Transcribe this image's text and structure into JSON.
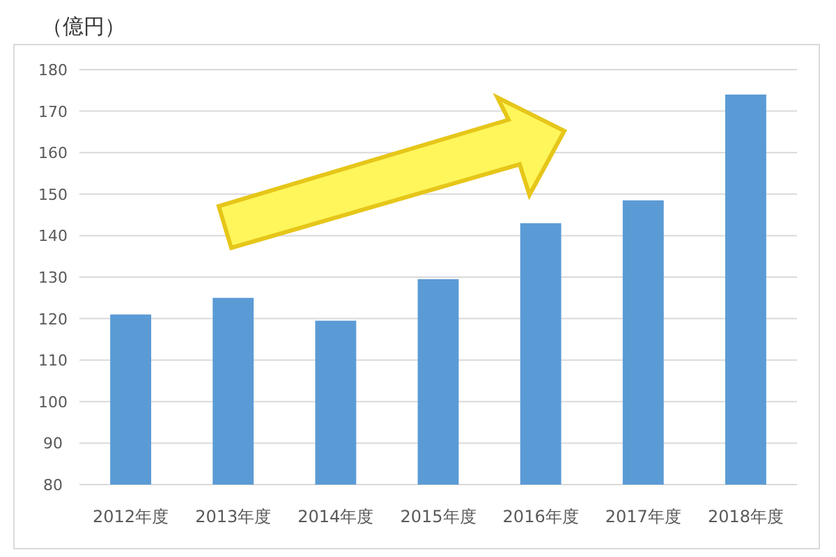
{
  "chart_data": {
    "type": "bar",
    "ylabel": "（億円）",
    "categories": [
      "2012年度",
      "2013年度",
      "2014年度",
      "2015年度",
      "2016年度",
      "2017年度",
      "2018年度"
    ],
    "values": [
      121,
      125,
      119.5,
      129.5,
      143,
      148.5,
      174
    ],
    "color": "#5b9bd5",
    "ylim": [
      80,
      180
    ],
    "yticks": [
      80,
      90,
      100,
      110,
      120,
      130,
      140,
      150,
      160,
      170,
      180
    ],
    "grid": "y"
  }
}
